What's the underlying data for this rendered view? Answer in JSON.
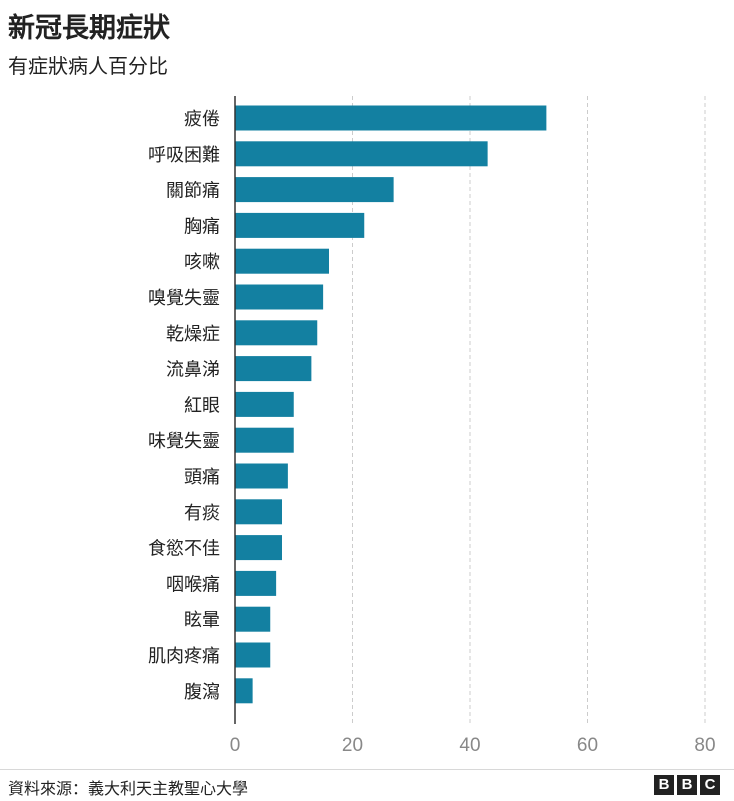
{
  "chart_data": {
    "type": "bar",
    "orientation": "horizontal",
    "title": "新冠長期症狀",
    "subtitle": "有症狀病人百分比",
    "categories": [
      "疲倦",
      "呼吸困難",
      "關節痛",
      "胸痛",
      "咳嗽",
      "嗅覺失靈",
      "乾燥症",
      "流鼻涕",
      "紅眼",
      "味覺失靈",
      "頭痛",
      "有痰",
      "食慾不佳",
      "咽喉痛",
      "眩暈",
      "肌肉疼痛",
      "腹瀉"
    ],
    "values": [
      53,
      43,
      27,
      22,
      16,
      15,
      14,
      13,
      10,
      10,
      9,
      8,
      8,
      7,
      6,
      6,
      3
    ],
    "xlim": [
      0,
      80
    ],
    "xticks": [
      0,
      20,
      40,
      60,
      80
    ],
    "xlabel": "",
    "ylabel": "",
    "grid": "vertical-dashed",
    "bar_color": "#1380A1"
  },
  "footer": {
    "source": "資料來源：義大利天主教聖心大學",
    "logo_letters": [
      "B",
      "B",
      "C"
    ]
  }
}
